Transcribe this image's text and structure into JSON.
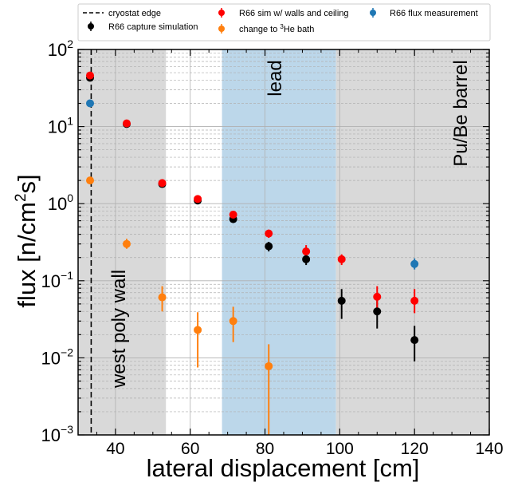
{
  "chart_data": {
    "type": "scatter",
    "xlabel": "lateral displacement [cm]",
    "ylabel": "flux [n/cm",
    "ylabel_sup": "2",
    "ylabel_end": "s]",
    "xlim": [
      30,
      140
    ],
    "ylim": [
      0.001,
      100
    ],
    "yscale": "log",
    "grid": true,
    "legend_position": "top, outside plot",
    "x_ticks": [
      40,
      60,
      80,
      100,
      120,
      140
    ],
    "x_tick_labels": [
      "40",
      "60",
      "80",
      "100",
      "120",
      "140"
    ],
    "y_ticks": [
      0.001,
      0.01,
      0.1,
      1,
      10,
      100
    ],
    "y_tick_labels": [
      {
        "base": "10",
        "exp": "−3"
      },
      {
        "base": "10",
        "exp": "−2"
      },
      {
        "base": "10",
        "exp": "−1"
      },
      {
        "base": "10",
        "exp": "0"
      },
      {
        "base": "10",
        "exp": "1"
      },
      {
        "base": "10",
        "exp": "2"
      }
    ],
    "regions": [
      {
        "x0": 30,
        "x1": 53.5,
        "color": "#d9d9d9",
        "label": "west poly wall"
      },
      {
        "x0": 68.5,
        "x1": 99,
        "color": "#bcd7ea",
        "label": "lead"
      },
      {
        "x0": 99,
        "x1": 140,
        "color": "#d9d9d9",
        "label": "Pu/Be barrel"
      }
    ],
    "cryostat_edge_x": 33.5,
    "legend": {
      "cryostat": "cryostat edge",
      "capture": "R66 capture simulation",
      "sim": "R66 sim w/ walls and ceiling",
      "bath_prefix": "change to ",
      "bath_sup": "3",
      "bath_suffix": "He bath",
      "measurement": "R66 flux measurement"
    },
    "series": [
      {
        "key": "capture",
        "color": "#000000",
        "points": [
          {
            "x": 33.2,
            "y": 43,
            "lo": 39,
            "hi": 47
          },
          {
            "x": 43,
            "y": 10.8,
            "lo": 10,
            "hi": 11.6
          },
          {
            "x": 52.5,
            "y": 1.8,
            "lo": 1.7,
            "hi": 1.9
          },
          {
            "x": 62,
            "y": 1.1,
            "lo": 1.03,
            "hi": 1.18
          },
          {
            "x": 71.5,
            "y": 0.63,
            "lo": 0.59,
            "hi": 0.67
          },
          {
            "x": 81,
            "y": 0.28,
            "lo": 0.24,
            "hi": 0.32
          },
          {
            "x": 91,
            "y": 0.19,
            "lo": 0.16,
            "hi": 0.22
          },
          {
            "x": 100.5,
            "y": 0.055,
            "lo": 0.032,
            "hi": 0.078
          },
          {
            "x": 110,
            "y": 0.04,
            "lo": 0.024,
            "hi": 0.056
          },
          {
            "x": 120,
            "y": 0.017,
            "lo": 0.009,
            "hi": 0.026
          }
        ]
      },
      {
        "key": "sim",
        "color": "#ff0000",
        "points": [
          {
            "x": 33.2,
            "y": 46,
            "lo": 42,
            "hi": 50
          },
          {
            "x": 43,
            "y": 11,
            "lo": 10.3,
            "hi": 11.7
          },
          {
            "x": 52.5,
            "y": 1.85,
            "lo": 1.75,
            "hi": 1.95
          },
          {
            "x": 62,
            "y": 1.15,
            "lo": 1.08,
            "hi": 1.22
          },
          {
            "x": 71.5,
            "y": 0.72,
            "lo": 0.67,
            "hi": 0.77
          },
          {
            "x": 81,
            "y": 0.41,
            "lo": 0.36,
            "hi": 0.46
          },
          {
            "x": 91,
            "y": 0.24,
            "lo": 0.2,
            "hi": 0.29
          },
          {
            "x": 100.5,
            "y": 0.19,
            "lo": 0.16,
            "hi": 0.22
          },
          {
            "x": 110,
            "y": 0.062,
            "lo": 0.042,
            "hi": 0.085
          },
          {
            "x": 120,
            "y": 0.055,
            "lo": 0.038,
            "hi": 0.078
          }
        ]
      },
      {
        "key": "bath",
        "color": "#ff7f0e",
        "points": [
          {
            "x": 33.2,
            "y": 2.0,
            "lo": 1.88,
            "hi": 2.12
          },
          {
            "x": 43,
            "y": 0.3,
            "lo": 0.26,
            "hi": 0.35
          },
          {
            "x": 52.5,
            "y": 0.061,
            "lo": 0.04,
            "hi": 0.085
          },
          {
            "x": 62,
            "y": 0.023,
            "lo": 0.0075,
            "hi": 0.039
          },
          {
            "x": 71.5,
            "y": 0.03,
            "lo": 0.016,
            "hi": 0.046
          },
          {
            "x": 81,
            "y": 0.0078,
            "lo": 0.001,
            "hi": 0.015
          }
        ]
      },
      {
        "key": "measurement",
        "color": "#1f77b4",
        "points": [
          {
            "x": 33.2,
            "y": 20,
            "lo": 19,
            "hi": 21
          },
          {
            "x": 120,
            "y": 0.165,
            "lo": 0.14,
            "hi": 0.195
          }
        ]
      }
    ]
  }
}
